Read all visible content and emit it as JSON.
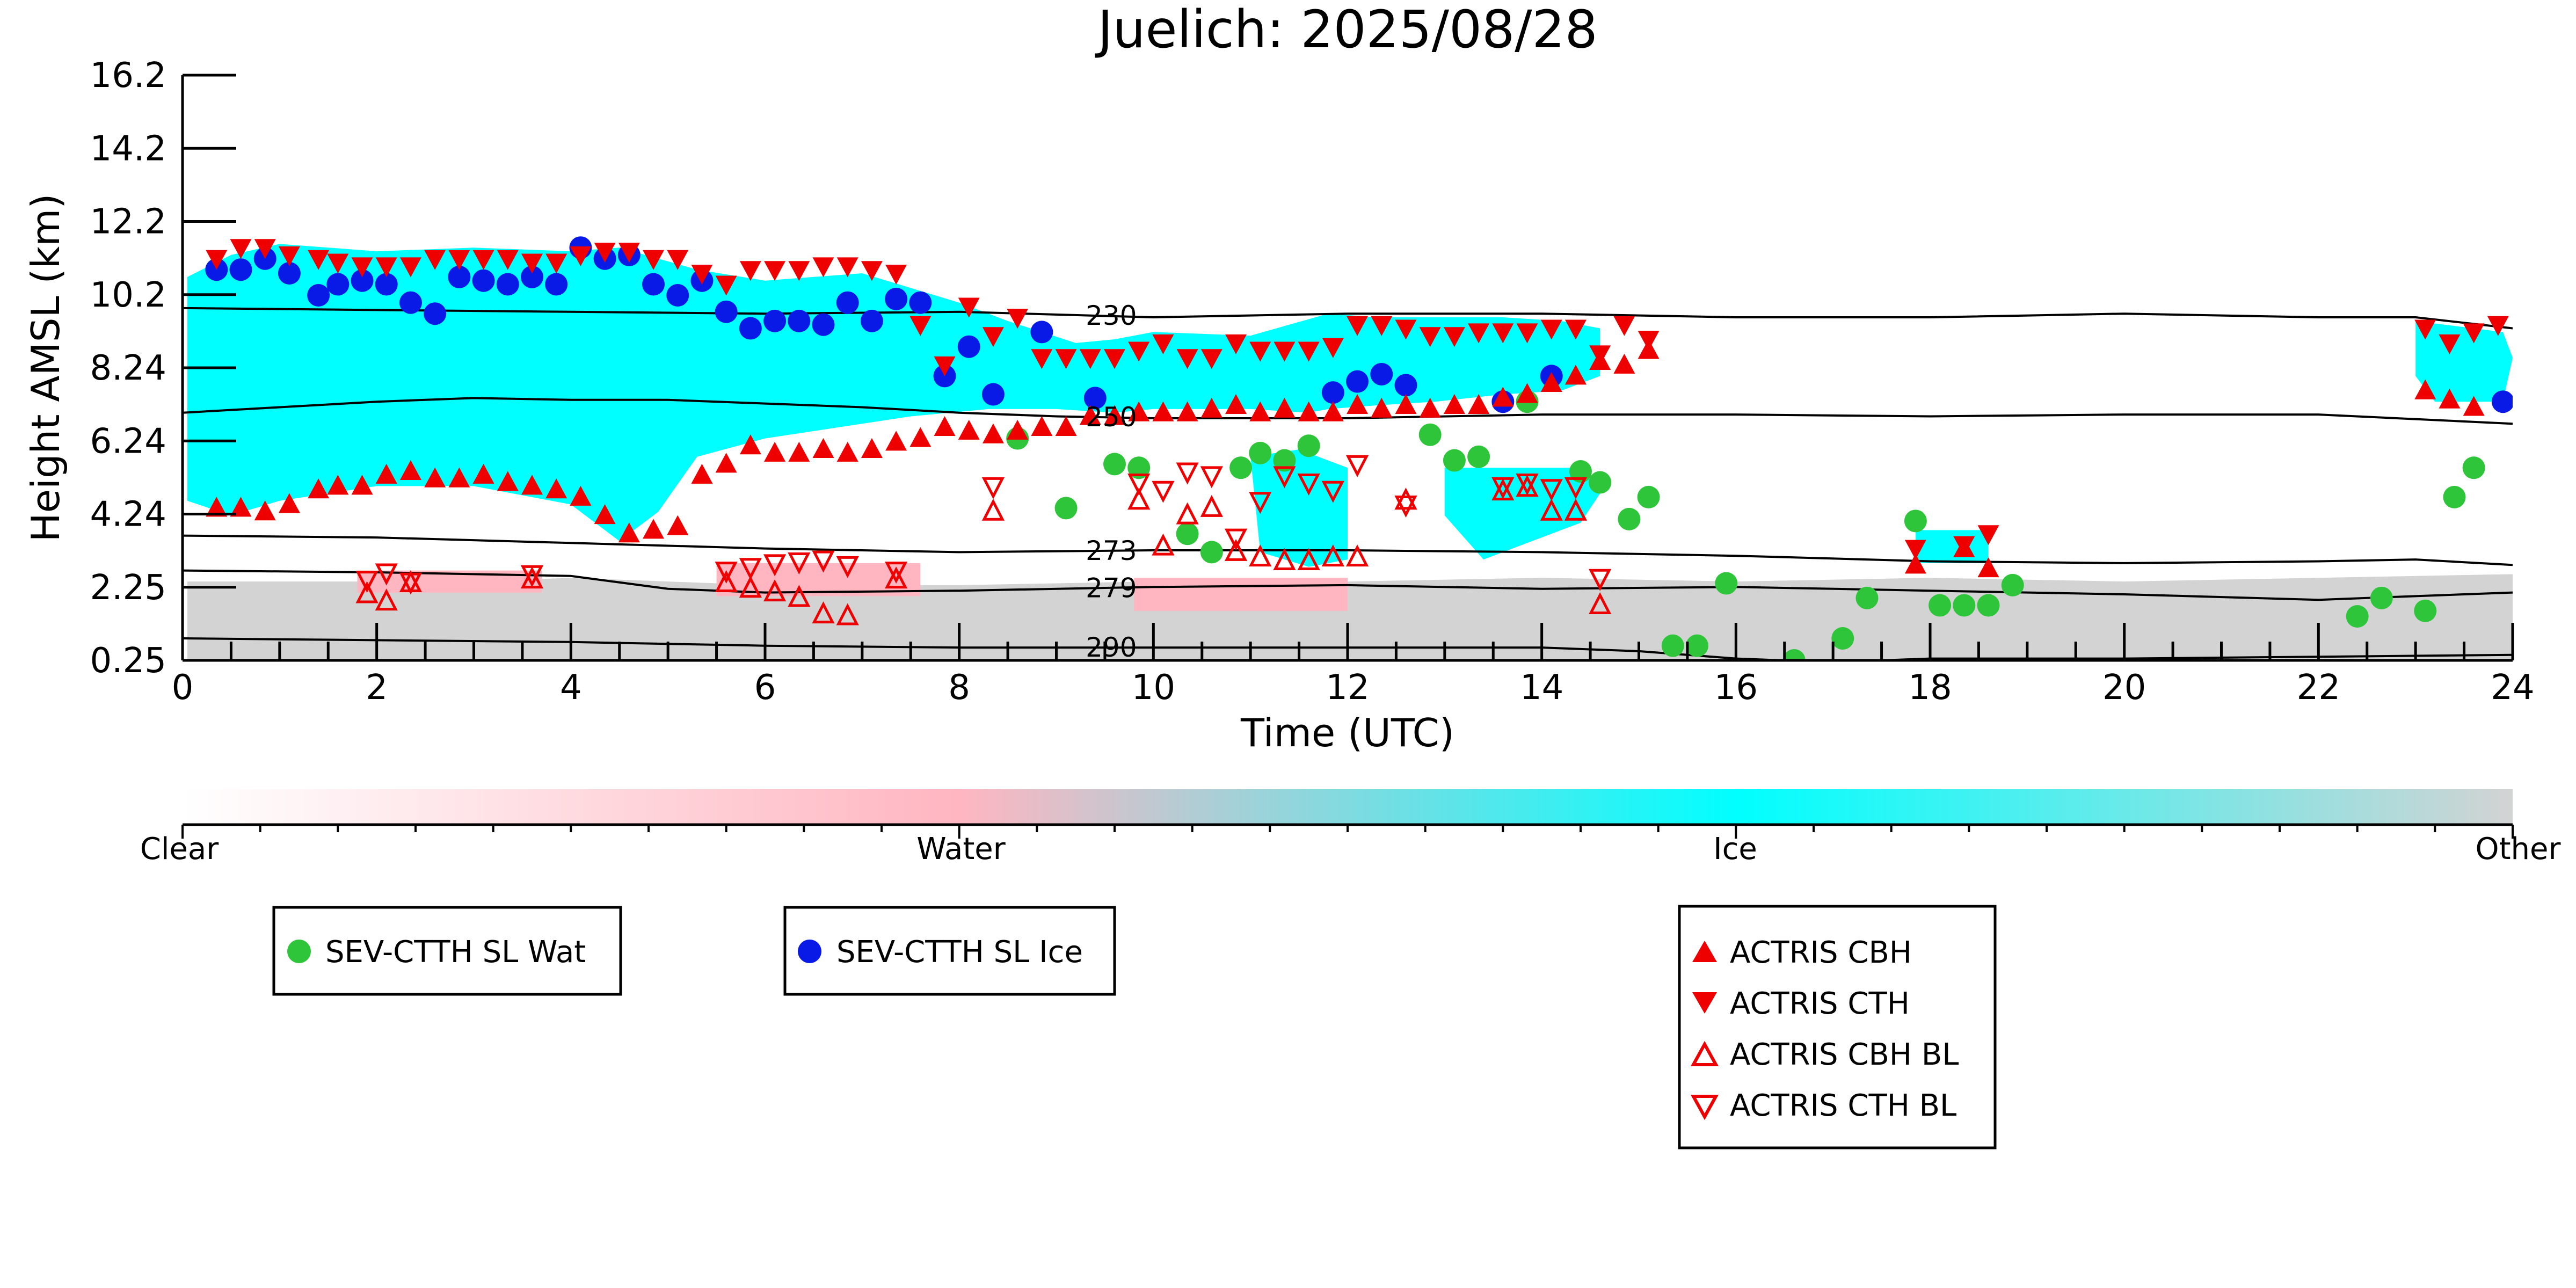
{
  "chart_data": {
    "type": "scatter",
    "title": "Juelich: 2025/08/28",
    "xlabel": "Time (UTC)",
    "ylabel": "Height AMSL (km)",
    "xlim": [
      0,
      24
    ],
    "ylim": [
      0.25,
      16.2
    ],
    "x_ticks": [
      0,
      2,
      4,
      6,
      8,
      10,
      12,
      14,
      16,
      18,
      20,
      22,
      24
    ],
    "y_ticks": [
      "0.25",
      "2.25",
      "4.24",
      "6.24",
      "8.24",
      "10.2",
      "12.2",
      "14.2",
      "16.2"
    ],
    "background_field": "cloud phase classification (Clear / Water / Ice / Other)",
    "colorbar": {
      "labels": [
        "Clear",
        "Water",
        "Ice",
        "Other"
      ],
      "colors": {
        "clear": "#ffffff",
        "water": "#ffb6c1",
        "ice": "#00ffff",
        "other": "#d3d3d3"
      }
    },
    "temperature_contours": [
      {
        "label": "230",
        "x": [
          0,
          2,
          4,
          6,
          8,
          10,
          12,
          14,
          16,
          18,
          20,
          22,
          23,
          24
        ],
        "y": [
          9.85,
          9.8,
          9.75,
          9.7,
          9.75,
          9.6,
          9.7,
          9.7,
          9.6,
          9.6,
          9.7,
          9.6,
          9.6,
          9.3
        ]
      },
      {
        "label": "250",
        "x": [
          0,
          1,
          2,
          3,
          4,
          5,
          6,
          7,
          8,
          9,
          10,
          12,
          14,
          16,
          18,
          20,
          22,
          24
        ],
        "y": [
          7.0,
          7.15,
          7.3,
          7.4,
          7.35,
          7.35,
          7.25,
          7.15,
          7.0,
          6.9,
          6.85,
          6.85,
          6.95,
          6.95,
          6.9,
          6.95,
          6.95,
          6.7
        ]
      },
      {
        "label": "273",
        "x": [
          0,
          2,
          4,
          6,
          8,
          10,
          12,
          14,
          16,
          18,
          20,
          22,
          23,
          24
        ],
        "y": [
          3.65,
          3.6,
          3.45,
          3.3,
          3.2,
          3.25,
          3.25,
          3.2,
          3.1,
          2.95,
          2.9,
          2.95,
          3.0,
          2.85
        ]
      },
      {
        "label": "279",
        "x": [
          0,
          2,
          3,
          4,
          5,
          6,
          8,
          10,
          12,
          14,
          16,
          18,
          20,
          22,
          24
        ],
        "y": [
          2.7,
          2.65,
          2.6,
          2.55,
          2.2,
          2.1,
          2.15,
          2.25,
          2.3,
          2.2,
          2.25,
          2.15,
          2.05,
          1.9,
          2.1
        ]
      },
      {
        "label": "290",
        "x": [
          0,
          2,
          4,
          6,
          8,
          10,
          12,
          14,
          15,
          16,
          17,
          18,
          20,
          22,
          24
        ],
        "y": [
          0.85,
          0.8,
          0.75,
          0.65,
          0.6,
          0.6,
          0.6,
          0.6,
          0.5,
          0.3,
          0.2,
          0.3,
          0.3,
          0.35,
          0.4
        ]
      }
    ],
    "series": [
      {
        "name": "SEV-CTTH SL Wat",
        "marker": "circle",
        "color": "#2fc53a",
        "x": [
          8.6,
          9.1,
          9.6,
          9.85,
          10.35,
          10.6,
          10.9,
          11.1,
          11.35,
          11.6,
          12.85,
          13.1,
          13.35,
          13.85,
          14.4,
          14.6,
          14.9,
          15.1,
          15.35,
          15.6,
          15.9,
          16.6,
          17.1,
          17.35,
          17.85,
          18.1,
          18.35,
          18.6,
          18.85,
          22.4,
          22.65,
          23.1,
          23.4,
          23.6
        ],
        "y": [
          6.3,
          4.4,
          5.6,
          5.5,
          3.7,
          3.2,
          5.5,
          5.9,
          5.7,
          6.1,
          6.4,
          5.7,
          5.8,
          7.3,
          5.4,
          5.1,
          4.1,
          4.7,
          0.65,
          0.65,
          2.35,
          0.25,
          0.85,
          1.95,
          4.05,
          1.75,
          1.75,
          1.75,
          2.3,
          1.45,
          1.95,
          1.6,
          4.7,
          5.5
        ]
      },
      {
        "name": "SEV-CTTH SL Ice",
        "marker": "circle",
        "color": "#0a1ae6",
        "x": [
          0.35,
          0.6,
          0.85,
          1.1,
          1.4,
          1.6,
          1.85,
          2.1,
          2.35,
          2.6,
          2.85,
          3.1,
          3.35,
          3.6,
          3.85,
          4.1,
          4.35,
          4.6,
          4.85,
          5.1,
          5.35,
          5.6,
          5.85,
          6.1,
          6.35,
          6.6,
          6.85,
          7.1,
          7.35,
          7.6,
          7.85,
          8.1,
          8.35,
          8.85,
          9.4,
          11.85,
          12.1,
          12.35,
          12.6,
          13.6,
          14.1,
          23.9
        ],
        "y": [
          10.9,
          10.9,
          11.2,
          10.8,
          10.2,
          10.5,
          10.6,
          10.5,
          10.0,
          9.7,
          10.7,
          10.6,
          10.5,
          10.7,
          10.5,
          11.5,
          11.2,
          11.3,
          10.5,
          10.2,
          10.6,
          9.75,
          9.3,
          9.5,
          9.5,
          9.4,
          10.0,
          9.5,
          10.1,
          10.0,
          8.0,
          8.8,
          7.5,
          9.2,
          7.4,
          7.55,
          7.85,
          8.05,
          7.75,
          7.3,
          8.0,
          7.3
        ]
      },
      {
        "name": "ACTRIS CBH",
        "marker": "triangle-up",
        "color": "#ee0000",
        "x": [
          0.35,
          0.6,
          0.85,
          1.1,
          1.4,
          1.6,
          1.85,
          2.1,
          2.35,
          2.6,
          2.85,
          3.1,
          3.35,
          3.6,
          3.85,
          4.1,
          4.35,
          4.6,
          4.85,
          5.1,
          5.35,
          5.6,
          5.85,
          6.1,
          6.35,
          6.6,
          6.85,
          7.1,
          7.35,
          7.6,
          7.85,
          8.1,
          8.35,
          8.6,
          8.85,
          9.1,
          9.35,
          9.6,
          9.85,
          10.1,
          10.35,
          10.6,
          10.85,
          11.1,
          11.35,
          11.6,
          11.85,
          12.1,
          12.35,
          12.6,
          12.85,
          13.1,
          13.35,
          13.6,
          13.85,
          14.1,
          14.35,
          14.6,
          14.85,
          15.1,
          17.85,
          18.35,
          18.6,
          23.1,
          23.35,
          23.6
        ],
        "y": [
          4.4,
          4.4,
          4.3,
          4.5,
          4.9,
          5.0,
          5.0,
          5.3,
          5.4,
          5.2,
          5.2,
          5.3,
          5.1,
          5.0,
          4.9,
          4.7,
          4.2,
          3.7,
          3.8,
          3.9,
          5.3,
          5.6,
          6.1,
          5.9,
          5.9,
          6.0,
          5.9,
          6.0,
          6.2,
          6.3,
          6.6,
          6.5,
          6.4,
          6.5,
          6.6,
          6.6,
          6.9,
          6.9,
          7.0,
          7.0,
          7.0,
          7.1,
          7.2,
          7.0,
          7.1,
          7.0,
          7.0,
          7.2,
          7.1,
          7.2,
          7.1,
          7.2,
          7.2,
          7.4,
          7.5,
          7.8,
          8.0,
          8.4,
          8.3,
          8.7,
          2.85,
          3.3,
          2.75,
          7.6,
          7.35,
          7.15
        ]
      },
      {
        "name": "ACTRIS CTH",
        "marker": "triangle-down",
        "color": "#ee0000",
        "x": [
          0.35,
          0.6,
          0.85,
          1.1,
          1.4,
          1.6,
          1.85,
          2.1,
          2.35,
          2.6,
          2.85,
          3.1,
          3.35,
          3.6,
          3.85,
          4.1,
          4.35,
          4.6,
          4.85,
          5.1,
          5.35,
          5.6,
          5.85,
          6.1,
          6.35,
          6.6,
          6.85,
          7.1,
          7.35,
          7.6,
          7.85,
          8.1,
          8.35,
          8.6,
          8.85,
          9.1,
          9.35,
          9.6,
          9.85,
          10.1,
          10.35,
          10.6,
          10.85,
          11.1,
          11.35,
          11.6,
          11.85,
          12.1,
          12.35,
          12.6,
          12.85,
          13.1,
          13.35,
          13.6,
          13.85,
          14.1,
          14.35,
          14.6,
          14.85,
          15.1,
          17.85,
          18.35,
          18.6,
          23.1,
          23.35,
          23.6,
          23.85
        ],
        "y": [
          11.2,
          11.5,
          11.5,
          11.3,
          11.2,
          11.1,
          11.0,
          11.0,
          11.0,
          11.2,
          11.2,
          11.2,
          11.2,
          11.1,
          11.1,
          11.3,
          11.4,
          11.4,
          11.2,
          11.2,
          10.8,
          10.5,
          10.9,
          10.9,
          10.9,
          11.0,
          11.0,
          10.9,
          10.8,
          9.4,
          8.3,
          9.9,
          9.1,
          9.6,
          8.5,
          8.5,
          8.5,
          8.5,
          8.7,
          8.9,
          8.5,
          8.5,
          8.9,
          8.7,
          8.7,
          8.7,
          8.8,
          9.4,
          9.4,
          9.3,
          9.1,
          9.1,
          9.2,
          9.2,
          9.2,
          9.3,
          9.3,
          8.6,
          9.4,
          9.0,
          3.3,
          3.4,
          3.7,
          9.3,
          8.9,
          9.2,
          9.4
        ]
      },
      {
        "name": "ACTRIS CBH BL",
        "marker": "triangle-up-open",
        "color": "#ee0000",
        "x": [
          1.9,
          2.1,
          2.35,
          3.6,
          5.6,
          5.85,
          6.1,
          6.35,
          6.6,
          6.85,
          7.35,
          8.35,
          9.85,
          10.1,
          10.35,
          10.6,
          10.85,
          11.1,
          11.35,
          11.6,
          11.85,
          12.1,
          12.6,
          13.6,
          13.85,
          14.1,
          14.35,
          14.6
        ],
        "y": [
          2.05,
          1.85,
          2.35,
          2.45,
          2.35,
          2.2,
          2.1,
          1.95,
          1.5,
          1.45,
          2.45,
          4.3,
          4.6,
          3.35,
          4.2,
          4.4,
          3.2,
          3.05,
          2.95,
          2.95,
          3.05,
          3.05,
          4.6,
          4.85,
          4.95,
          4.3,
          4.3,
          1.75
        ]
      },
      {
        "name": "ACTRIS CTH BL",
        "marker": "triangle-down-open",
        "color": "#ee0000",
        "x": [
          1.9,
          2.1,
          2.35,
          3.6,
          5.6,
          5.85,
          6.1,
          6.35,
          6.6,
          6.85,
          7.35,
          8.35,
          9.85,
          10.1,
          10.35,
          10.6,
          10.85,
          11.1,
          11.35,
          11.6,
          11.85,
          12.1,
          12.6,
          13.6,
          13.85,
          14.1,
          14.35,
          14.6
        ],
        "y": [
          2.45,
          2.65,
          2.4,
          2.6,
          2.7,
          2.8,
          2.9,
          2.95,
          3.0,
          2.85,
          2.7,
          5.0,
          5.1,
          4.9,
          5.4,
          5.3,
          3.6,
          4.6,
          5.3,
          5.1,
          4.9,
          5.6,
          4.5,
          5.0,
          5.1,
          4.95,
          5.0,
          2.5
        ]
      }
    ],
    "phase_regions": [
      {
        "phase": "ice",
        "x": [
          0.05,
          0.5,
          1.0,
          2.0,
          3.0,
          4.0,
          4.5,
          4.9,
          5.3,
          6.0,
          7.0,
          8.0,
          8.5,
          9.2,
          9.6,
          10.0,
          11.0,
          11.8,
          12.3,
          12.9,
          13.6,
          14.2,
          14.6,
          14.6,
          14.2,
          13.6,
          12.9,
          12.3,
          11.8,
          11.6,
          11.0,
          10.0,
          9.6,
          9.0,
          8.3,
          7.5,
          7.0,
          6.0,
          5.3,
          4.9,
          4.5,
          4.0,
          3.0,
          2.0,
          1.0,
          0.5,
          0.05
        ],
        "y": [
          10.7,
          11.3,
          11.6,
          11.4,
          11.5,
          11.4,
          11.5,
          11.2,
          10.9,
          10.6,
          10.8,
          10.0,
          9.5,
          8.9,
          9.0,
          9.2,
          9.1,
          9.7,
          9.6,
          9.6,
          9.6,
          9.5,
          9.3,
          8.0,
          7.6,
          7.5,
          7.3,
          7.2,
          7.1,
          7.0,
          7.1,
          7.1,
          7.0,
          7.1,
          7.1,
          6.9,
          6.7,
          6.3,
          5.8,
          4.3,
          3.5,
          4.5,
          5.0,
          5.0,
          4.6,
          4.2,
          4.6
        ]
      },
      {
        "phase": "ice",
        "x": [
          11.0,
          11.5,
          12.0,
          12.0,
          11.6,
          11.1
        ],
        "y": [
          5.8,
          6.0,
          5.5,
          3.0,
          2.8,
          3.2
        ]
      },
      {
        "phase": "ice",
        "x": [
          13.0,
          14.4,
          14.6,
          14.4,
          13.4,
          13.0
        ],
        "y": [
          5.5,
          5.5,
          4.8,
          4.0,
          3.0,
          4.2
        ]
      },
      {
        "phase": "ice",
        "x": [
          23.0,
          23.9,
          24.0,
          23.9,
          23.2,
          23.0
        ],
        "y": [
          9.5,
          9.2,
          8.5,
          7.3,
          7.3,
          8.0
        ]
      },
      {
        "phase": "ice",
        "x": [
          17.85,
          18.6,
          18.6,
          17.85
        ],
        "y": [
          3.8,
          3.8,
          2.9,
          2.9
        ]
      },
      {
        "phase": "other",
        "x": [
          0.05,
          3.0,
          4.0,
          6.0,
          8.0,
          10.0,
          12.0,
          14.0,
          16.0,
          18.0,
          20.0,
          22.0,
          24.0,
          24.0,
          0.05
        ],
        "y": [
          2.4,
          2.4,
          2.5,
          2.3,
          2.3,
          2.4,
          2.4,
          2.5,
          2.4,
          2.5,
          2.4,
          2.5,
          2.6,
          0.25,
          0.25
        ]
      },
      {
        "phase": "water",
        "x": [
          5.5,
          7.6,
          7.6,
          5.5
        ],
        "y": [
          2.9,
          2.9,
          2.0,
          2.0
        ]
      },
      {
        "phase": "water",
        "x": [
          1.8,
          3.7,
          3.7,
          1.8
        ],
        "y": [
          2.7,
          2.7,
          2.1,
          2.1
        ]
      },
      {
        "phase": "water",
        "x": [
          9.8,
          12.0,
          12.0,
          9.8
        ],
        "y": [
          2.5,
          2.5,
          1.6,
          1.6
        ]
      }
    ]
  }
}
